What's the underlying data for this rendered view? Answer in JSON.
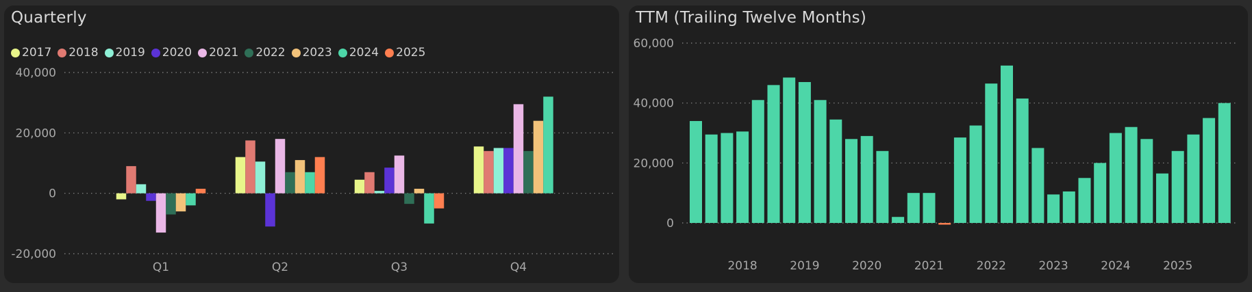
{
  "quarterly": {
    "title": "Quarterly",
    "chart_data": {
      "type": "bar",
      "categories": [
        "Q1",
        "Q2",
        "Q3",
        "Q4"
      ],
      "series": [
        {
          "name": "2017",
          "color": "#e8f58a",
          "values": [
            -2000,
            12000,
            4500,
            15500
          ]
        },
        {
          "name": "2018",
          "color": "#e07a72",
          "values": [
            9000,
            17500,
            7000,
            14000
          ]
        },
        {
          "name": "2019",
          "color": "#8ef0d6",
          "values": [
            3000,
            10500,
            800,
            15000
          ]
        },
        {
          "name": "2020",
          "color": "#5b33d6",
          "values": [
            -2500,
            -11000,
            8500,
            15000
          ]
        },
        {
          "name": "2021",
          "color": "#eab7e6",
          "values": [
            -13000,
            18000,
            12500,
            29500
          ]
        },
        {
          "name": "2022",
          "color": "#2f6f57",
          "values": [
            -7000,
            7000,
            -3500,
            14000
          ]
        },
        {
          "name": "2023",
          "color": "#f2c27a",
          "values": [
            -6000,
            11000,
            1500,
            24000
          ]
        },
        {
          "name": "2024",
          "color": "#4dd6a8",
          "values": [
            -4000,
            7000,
            -10000,
            32000
          ]
        },
        {
          "name": "2025",
          "color": "#ff7f50",
          "values": [
            1500,
            12000,
            -5000,
            null
          ]
        }
      ],
      "ylim": [
        -20000,
        40000
      ],
      "yticks": [
        "40,000",
        "20,000",
        "0",
        "-20,000"
      ],
      "ytick_values": [
        40000,
        20000,
        0,
        -20000
      ],
      "grid": true,
      "legend": "top-left"
    }
  },
  "ttm": {
    "title": "TTM (Trailing Twelve Months)",
    "chart_data": {
      "type": "bar",
      "color": "#4dd6a8",
      "negative_color": "#ff7f50",
      "values": [
        34000,
        29500,
        30000,
        30500,
        41000,
        46000,
        48500,
        47000,
        41000,
        34500,
        28000,
        29000,
        24000,
        2000,
        10000,
        10000,
        -500,
        28500,
        32500,
        46500,
        52500,
        41500,
        25000,
        9500,
        10500,
        15000,
        20000,
        30000,
        32000,
        28000,
        16500,
        24000,
        29500,
        35000,
        40000
      ],
      "xtick_labels": [
        "2018",
        "2019",
        "2020",
        "2021",
        "2022",
        "2023",
        "2024",
        "2025"
      ],
      "xtick_bar_index": [
        3,
        7,
        11,
        15,
        19,
        23,
        27,
        31
      ],
      "ylim": [
        0,
        60000
      ],
      "yticks": [
        "60,000",
        "40,000",
        "20,000",
        "0"
      ],
      "ytick_values": [
        60000,
        40000,
        20000,
        0
      ],
      "grid": true
    }
  }
}
